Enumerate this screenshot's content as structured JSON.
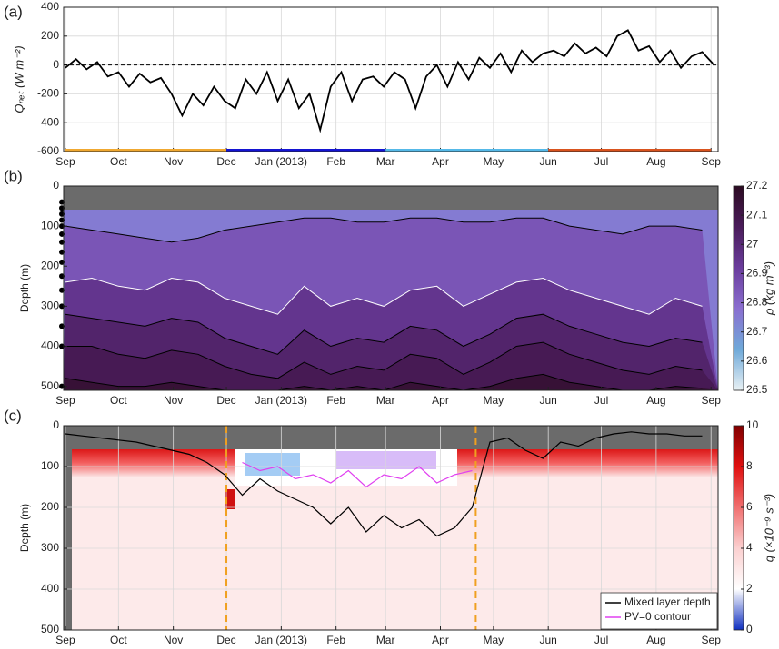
{
  "chart_data": [
    {
      "type": "line",
      "panel_label": "(a)",
      "ylabel": "Qₙₑₜ (W m⁻²)",
      "xlim": [
        -1,
        369
      ],
      "xticks": [
        {
          "value": 0,
          "label": "Sep"
        },
        {
          "value": 30,
          "label": "Oct"
        },
        {
          "value": 61,
          "label": "Nov"
        },
        {
          "value": 91,
          "label": "Dec"
        },
        {
          "value": 122,
          "label": "Jan (2013)"
        },
        {
          "value": 153,
          "label": "Feb"
        },
        {
          "value": 181,
          "label": "Mar"
        },
        {
          "value": 212,
          "label": "Apr"
        },
        {
          "value": 242,
          "label": "May"
        },
        {
          "value": 273,
          "label": "Jun"
        },
        {
          "value": 303,
          "label": "Jul"
        },
        {
          "value": 334,
          "label": "Aug"
        },
        {
          "value": 365,
          "label": "Sep"
        }
      ],
      "ylim": [
        -600,
        400
      ],
      "yticks": [
        -600,
        -400,
        -200,
        0,
        200,
        400
      ],
      "grid": true,
      "hline": 0,
      "series": [
        {
          "color": "#000000",
          "x": [
            0,
            6,
            12,
            18,
            24,
            30,
            36,
            42,
            48,
            54,
            60,
            66,
            72,
            78,
            84,
            90,
            96,
            102,
            108,
            114,
            120,
            126,
            132,
            138,
            144,
            150,
            156,
            162,
            168,
            174,
            180,
            186,
            192,
            198,
            204,
            210,
            216,
            222,
            228,
            234,
            240,
            246,
            252,
            258,
            264,
            270,
            276,
            282,
            288,
            294,
            300,
            306,
            312,
            318,
            324,
            330,
            336,
            342,
            348,
            354,
            360,
            366
          ],
          "values": [
            -20,
            40,
            -30,
            20,
            -80,
            -50,
            -150,
            -60,
            -120,
            -90,
            -200,
            -350,
            -200,
            -280,
            -150,
            -250,
            -300,
            -100,
            -200,
            -50,
            -250,
            -100,
            -300,
            -200,
            -450,
            -150,
            -50,
            -250,
            -100,
            -80,
            -150,
            -50,
            -100,
            -300,
            -80,
            0,
            -150,
            20,
            -100,
            50,
            -20,
            80,
            -50,
            100,
            20,
            80,
            100,
            60,
            150,
            80,
            120,
            60,
            200,
            240,
            100,
            130,
            20,
            100,
            -20,
            60,
            90,
            10
          ]
        }
      ],
      "bands": [
        {
          "start": 0,
          "end": 91,
          "color": "#f0a830"
        },
        {
          "start": 91,
          "end": 181,
          "color": "#1414d2"
        },
        {
          "start": 181,
          "end": 273,
          "color": "#55b9e8"
        },
        {
          "start": 273,
          "end": 365,
          "color": "#d9531e"
        }
      ]
    },
    {
      "type": "contour",
      "panel_label": "(b)",
      "ylabel": "Depth (m)",
      "xlim": [
        -1,
        369
      ],
      "xticks": [
        {
          "value": 0,
          "label": "Sep"
        },
        {
          "value": 30,
          "label": "Oct"
        },
        {
          "value": 61,
          "label": "Nov"
        },
        {
          "value": 91,
          "label": "Dec"
        },
        {
          "value": 122,
          "label": "Jan (2013)"
        },
        {
          "value": 153,
          "label": "Feb"
        },
        {
          "value": 181,
          "label": "Mar"
        },
        {
          "value": 212,
          "label": "Apr"
        },
        {
          "value": 242,
          "label": "May"
        },
        {
          "value": 273,
          "label": "Jun"
        },
        {
          "value": 303,
          "label": "Jul"
        },
        {
          "value": 334,
          "label": "Aug"
        },
        {
          "value": 365,
          "label": "Sep"
        }
      ],
      "ylim": [
        0,
        510
      ],
      "yticks": [
        0,
        100,
        200,
        300,
        400,
        500
      ],
      "grid": false,
      "x": [
        0,
        15,
        30,
        45,
        60,
        75,
        90,
        105,
        120,
        135,
        150,
        165,
        180,
        195,
        210,
        225,
        240,
        255,
        270,
        285,
        300,
        315,
        330,
        345,
        360
      ],
      "contours": [
        {
          "level": 26.8,
          "color": "#000000",
          "depths": [
            100,
            110,
            120,
            130,
            140,
            130,
            110,
            100,
            90,
            80,
            80,
            90,
            90,
            80,
            80,
            90,
            90,
            80,
            80,
            100,
            110,
            120,
            100,
            100,
            110
          ]
        },
        {
          "level": 26.9,
          "color": "#ffffff",
          "depths": [
            240,
            230,
            250,
            260,
            230,
            240,
            280,
            300,
            320,
            250,
            300,
            280,
            300,
            260,
            250,
            300,
            270,
            240,
            230,
            260,
            280,
            300,
            320,
            280,
            300
          ]
        },
        {
          "level": 27.0,
          "color": "#000000",
          "depths": [
            320,
            330,
            340,
            350,
            330,
            340,
            380,
            400,
            420,
            360,
            400,
            380,
            390,
            350,
            360,
            400,
            370,
            330,
            320,
            350,
            370,
            390,
            400,
            380,
            390
          ]
        },
        {
          "level": 27.05,
          "color": "#000000",
          "depths": [
            400,
            400,
            420,
            430,
            410,
            420,
            450,
            470,
            480,
            440,
            470,
            450,
            460,
            420,
            430,
            470,
            440,
            400,
            390,
            420,
            440,
            460,
            470,
            450,
            460
          ]
        },
        {
          "level": 27.1,
          "color": "#000000",
          "depths": [
            480,
            490,
            500,
            500,
            490,
            500,
            510,
            510,
            510,
            500,
            510,
            500,
            510,
            490,
            500,
            510,
            500,
            480,
            470,
            490,
            500,
            510,
            510,
            500,
            505
          ]
        }
      ],
      "sensor_depths": [
        40,
        55,
        70,
        85,
        100,
        120,
        140,
        165,
        190,
        225,
        260,
        300,
        350,
        400,
        500
      ],
      "colorbar": {
        "label": "ρ (kg m⁻³)",
        "lim": [
          26.5,
          27.2
        ],
        "ticks": [
          26.5,
          26.6,
          26.7,
          26.8,
          26.9,
          27,
          27.1,
          27.2
        ],
        "colors": [
          "#e9f1f4",
          "#6fa9d9",
          "#8a6fd0",
          "#6a3c9c",
          "#4a1c5a",
          "#2c0b22"
        ]
      }
    },
    {
      "type": "profile",
      "panel_label": "(c)",
      "ylabel": "Depth (m)",
      "xlim": [
        -1,
        369
      ],
      "xticks": [
        {
          "value": 0,
          "label": "Sep"
        },
        {
          "value": 30,
          "label": "Oct"
        },
        {
          "value": 61,
          "label": "Nov"
        },
        {
          "value": 91,
          "label": "Dec"
        },
        {
          "value": 122,
          "label": "Jan (2013)"
        },
        {
          "value": 153,
          "label": "Feb"
        },
        {
          "value": 181,
          "label": "Mar"
        },
        {
          "value": 212,
          "label": "Apr"
        },
        {
          "value": 242,
          "label": "May"
        },
        {
          "value": 273,
          "label": "Jun"
        },
        {
          "value": 303,
          "label": "Jul"
        },
        {
          "value": 334,
          "label": "Aug"
        },
        {
          "value": 365,
          "label": "Sep"
        }
      ],
      "ylim": [
        0,
        500
      ],
      "yticks": [
        0,
        100,
        200,
        300,
        400,
        500
      ],
      "grid": true,
      "vlines": {
        "x": [
          91,
          232
        ],
        "color": "#f0a020"
      },
      "series": [
        {
          "name": "Mixed layer depth",
          "color": "#000000",
          "x": [
            0,
            10,
            20,
            30,
            40,
            50,
            60,
            70,
            80,
            90,
            100,
            110,
            120,
            130,
            140,
            150,
            160,
            170,
            180,
            190,
            200,
            210,
            220,
            230,
            240,
            250,
            260,
            270,
            280,
            290,
            300,
            310,
            320,
            330,
            340,
            350,
            360
          ],
          "values": [
            20,
            25,
            30,
            35,
            40,
            50,
            60,
            70,
            90,
            120,
            170,
            130,
            160,
            180,
            200,
            240,
            200,
            260,
            220,
            250,
            230,
            270,
            250,
            200,
            40,
            30,
            60,
            80,
            40,
            50,
            30,
            20,
            15,
            20,
            20,
            25,
            25
          ]
        },
        {
          "name": "PV=0 contour",
          "color": "#e040f0",
          "x": [
            100,
            110,
            120,
            130,
            140,
            150,
            160,
            170,
            180,
            190,
            200,
            210,
            220,
            230
          ],
          "values": [
            90,
            110,
            100,
            130,
            120,
            140,
            110,
            150,
            120,
            130,
            100,
            140,
            120,
            110
          ]
        }
      ],
      "legend": "lower right",
      "colorbar": {
        "label": "q (×10⁻⁹ s⁻³)",
        "lim": [
          0,
          10
        ],
        "ticks": [
          0,
          2,
          4,
          6,
          8,
          10
        ],
        "colors": [
          "#1030c0",
          "#ffffff",
          "#fbd0d0",
          "#f07070",
          "#e01010",
          "#800000"
        ]
      }
    }
  ]
}
